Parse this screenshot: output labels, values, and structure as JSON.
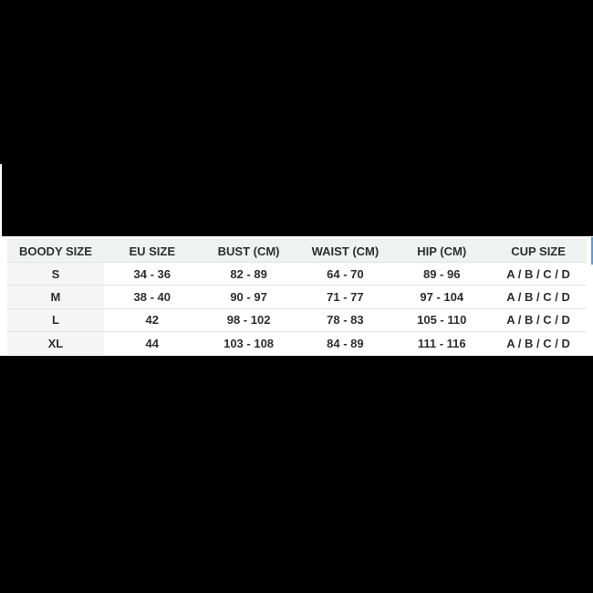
{
  "colors": {
    "background_black": "#000000",
    "band_white": "#ffffff",
    "header_bg": "#f0f1f1",
    "first_col_bg": "#f5f5f5",
    "row_border": "#e4e4e4",
    "text": "#2e2e2e",
    "accent_blue": "#5b9bd5"
  },
  "table": {
    "columns": [
      "BOODY SIZE",
      "EU SIZE",
      "BUST (CM)",
      "WAIST (CM)",
      "HIP (CM)",
      "CUP SIZE"
    ],
    "rows": [
      [
        "S",
        "34 - 36",
        "82 - 89",
        "64 - 70",
        "89 - 96",
        "A / B / C / D"
      ],
      [
        "M",
        "38 - 40",
        "90 - 97",
        "71 - 77",
        "97 - 104",
        "A / B / C / D"
      ],
      [
        "L",
        "42",
        "98 - 102",
        "78 - 83",
        "105 - 110",
        "A / B / C / D"
      ],
      [
        "XL",
        "44",
        "103 - 108",
        "84 - 89",
        "111 - 116",
        "A / B / C / D"
      ]
    ]
  },
  "chart_data": {
    "type": "table",
    "title": "",
    "columns": [
      "BOODY SIZE",
      "EU SIZE",
      "BUST (CM)",
      "WAIST (CM)",
      "HIP (CM)",
      "CUP SIZE"
    ],
    "rows": [
      [
        "S",
        "34 - 36",
        "82 - 89",
        "64 - 70",
        "89 - 96",
        "A / B / C / D"
      ],
      [
        "M",
        "38 - 40",
        "90 - 97",
        "71 - 77",
        "97 - 104",
        "A / B / C / D"
      ],
      [
        "L",
        "42",
        "98 - 102",
        "78 - 83",
        "105 - 110",
        "A / B / C / D"
      ],
      [
        "XL",
        "44",
        "103 - 108",
        "84 - 89",
        "111 - 116",
        "A / B / C / D"
      ]
    ],
    "layout_hints": {
      "header_background": "#f0f1f1",
      "first_column_background": "#f5f5f5",
      "grid": "horizontal-only",
      "alignment": "center"
    }
  }
}
